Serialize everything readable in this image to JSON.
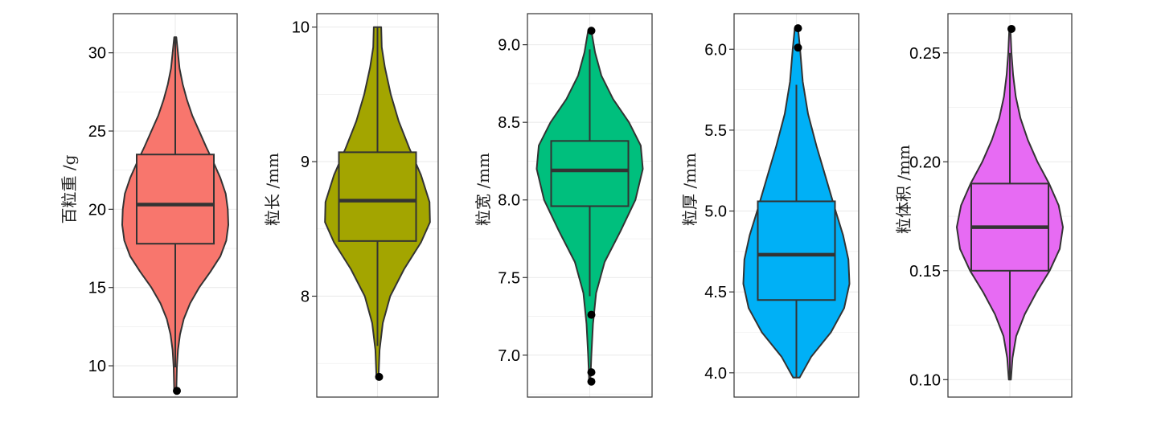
{
  "chart_data": [
    {
      "type": "violin",
      "ylabel": "百粒重 /g",
      "ylim": [
        8,
        32.5
      ],
      "yticks": [
        10,
        15,
        20,
        25,
        30
      ],
      "tick_labels": [
        "10",
        "15",
        "20",
        "25",
        "30"
      ],
      "fill": "#F8766D",
      "box": {
        "q1": 17.8,
        "median": 20.3,
        "q3": 23.5,
        "whisker_low": 9.9,
        "whisker_high": 31.0
      },
      "outliers": [
        8.4
      ],
      "density": [
        [
          8.4,
          0.02
        ],
        [
          9.9,
          0.03
        ],
        [
          11,
          0.05
        ],
        [
          12,
          0.09
        ],
        [
          13,
          0.16
        ],
        [
          14,
          0.28
        ],
        [
          15,
          0.45
        ],
        [
          16,
          0.66
        ],
        [
          17,
          0.85
        ],
        [
          18,
          0.96
        ],
        [
          19,
          1.0
        ],
        [
          20,
          0.99
        ],
        [
          21,
          0.95
        ],
        [
          22,
          0.85
        ],
        [
          23,
          0.72
        ],
        [
          24,
          0.58
        ],
        [
          25,
          0.45
        ],
        [
          26,
          0.32
        ],
        [
          27,
          0.22
        ],
        [
          28,
          0.14
        ],
        [
          29,
          0.08
        ],
        [
          30,
          0.05
        ],
        [
          31,
          0.02
        ]
      ]
    },
    {
      "type": "violin",
      "ylabel": "粒长 /mm",
      "ylim": [
        7.25,
        10.1
      ],
      "yticks": [
        8,
        9,
        10
      ],
      "tick_labels": [
        "8",
        "9",
        "10"
      ],
      "fill": "#A3A500",
      "box": {
        "q1": 8.41,
        "median": 8.71,
        "q3": 9.07,
        "whisker_low": 7.63,
        "whisker_high": 10.0
      },
      "outliers": [
        7.4
      ],
      "density": [
        [
          7.4,
          0.02
        ],
        [
          7.6,
          0.04
        ],
        [
          7.8,
          0.1
        ],
        [
          8.0,
          0.24
        ],
        [
          8.2,
          0.5
        ],
        [
          8.4,
          0.82
        ],
        [
          8.55,
          0.99
        ],
        [
          8.7,
          0.98
        ],
        [
          8.9,
          0.82
        ],
        [
          9.1,
          0.6
        ],
        [
          9.3,
          0.4
        ],
        [
          9.5,
          0.25
        ],
        [
          9.7,
          0.14
        ],
        [
          9.85,
          0.08
        ],
        [
          10.0,
          0.07
        ]
      ]
    },
    {
      "type": "violin",
      "ylabel": "粒宽 /mm",
      "ylim": [
        6.73,
        9.2
      ],
      "yticks": [
        7.0,
        7.5,
        8.0,
        8.5,
        9.0
      ],
      "tick_labels": [
        "7.0",
        "7.5",
        "8.0",
        "8.5",
        "9.0"
      ],
      "fill": "#00BF7D",
      "box": {
        "q1": 7.96,
        "median": 8.19,
        "q3": 8.38,
        "whisker_low": 7.38,
        "whisker_high": 8.97
      },
      "outliers": [
        9.09,
        7.26,
        6.89,
        6.83
      ],
      "density": [
        [
          6.83,
          0.01
        ],
        [
          7.0,
          0.03
        ],
        [
          7.2,
          0.06
        ],
        [
          7.4,
          0.12
        ],
        [
          7.6,
          0.28
        ],
        [
          7.8,
          0.58
        ],
        [
          8.0,
          0.86
        ],
        [
          8.2,
          1.0
        ],
        [
          8.35,
          0.96
        ],
        [
          8.5,
          0.74
        ],
        [
          8.65,
          0.44
        ],
        [
          8.8,
          0.22
        ],
        [
          8.95,
          0.1
        ],
        [
          9.09,
          0.03
        ]
      ]
    },
    {
      "type": "violin",
      "ylabel": "粒厚 /mm",
      "ylim": [
        3.85,
        6.22
      ],
      "yticks": [
        4.0,
        4.5,
        5.0,
        5.5,
        6.0
      ],
      "tick_labels": [
        "4.0",
        "4.5",
        "5.0",
        "5.5",
        "6.0"
      ],
      "fill": "#00B0F6",
      "box": {
        "q1": 4.45,
        "median": 4.73,
        "q3": 5.06,
        "whisker_low": 3.97,
        "whisker_high": 5.78
      },
      "outliers": [
        6.13,
        6.01
      ],
      "density": [
        [
          3.97,
          0.06
        ],
        [
          4.1,
          0.28
        ],
        [
          4.25,
          0.65
        ],
        [
          4.4,
          0.9
        ],
        [
          4.55,
          1.0
        ],
        [
          4.7,
          0.98
        ],
        [
          4.85,
          0.88
        ],
        [
          5.0,
          0.74
        ],
        [
          5.2,
          0.56
        ],
        [
          5.4,
          0.38
        ],
        [
          5.6,
          0.22
        ],
        [
          5.8,
          0.12
        ],
        [
          6.0,
          0.07
        ],
        [
          6.13,
          0.03
        ]
      ]
    },
    {
      "type": "violin",
      "ylabel": "粒体积 /mm",
      "ylim": [
        0.092,
        0.268
      ],
      "yticks": [
        0.1,
        0.15,
        0.2,
        0.25
      ],
      "tick_labels": [
        "0.10",
        "0.15",
        "0.20",
        "0.25"
      ],
      "fill": "#E76BF3",
      "box": {
        "q1": 0.15,
        "median": 0.17,
        "q3": 0.19,
        "whisker_low": 0.1,
        "whisker_high": 0.25
      },
      "outliers": [
        0.261
      ],
      "density": [
        [
          0.1,
          0.02
        ],
        [
          0.11,
          0.05
        ],
        [
          0.12,
          0.12
        ],
        [
          0.13,
          0.28
        ],
        [
          0.14,
          0.5
        ],
        [
          0.15,
          0.75
        ],
        [
          0.16,
          0.94
        ],
        [
          0.17,
          1.0
        ],
        [
          0.18,
          0.92
        ],
        [
          0.19,
          0.74
        ],
        [
          0.2,
          0.52
        ],
        [
          0.21,
          0.34
        ],
        [
          0.22,
          0.2
        ],
        [
          0.23,
          0.11
        ],
        [
          0.24,
          0.06
        ],
        [
          0.25,
          0.03
        ],
        [
          0.261,
          0.01
        ]
      ]
    }
  ]
}
